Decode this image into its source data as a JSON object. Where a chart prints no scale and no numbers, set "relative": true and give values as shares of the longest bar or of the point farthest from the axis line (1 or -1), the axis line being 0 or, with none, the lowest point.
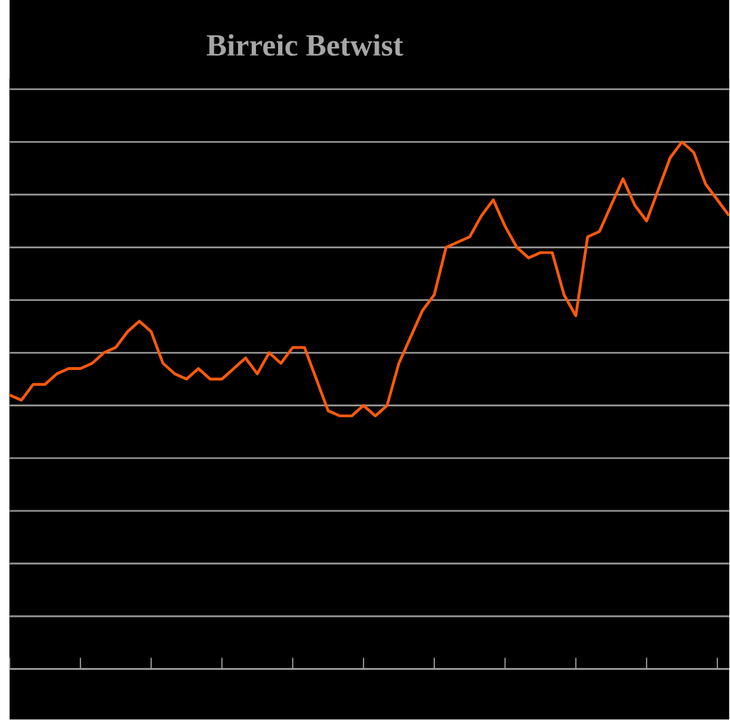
{
  "chart_data": {
    "type": "line",
    "title": "Birreic Betwist",
    "relative": true,
    "grid": "y",
    "tick_labels": false,
    "marker": "none",
    "line_style": "solid",
    "color": "#ff5a0a",
    "categories": [
      null,
      null,
      null,
      null,
      null,
      null,
      null,
      null,
      null,
      null,
      null,
      null,
      null,
      null,
      null,
      null,
      null,
      null,
      null,
      null,
      null,
      null,
      null,
      null,
      null,
      null,
      null,
      null,
      null,
      null,
      null,
      null,
      null,
      null,
      null,
      null,
      null,
      null,
      null,
      null,
      null,
      null,
      null,
      null,
      null,
      null,
      null,
      null,
      null,
      null,
      null,
      null,
      null,
      null,
      null,
      null,
      null,
      null,
      null,
      null,
      null,
      null
    ],
    "values": [
      0.52,
      0.51,
      0.54,
      0.54,
      0.56,
      0.57,
      0.57,
      0.58,
      0.6,
      0.61,
      0.64,
      0.66,
      0.64,
      0.58,
      0.56,
      0.55,
      0.57,
      0.55,
      0.55,
      0.57,
      0.59,
      0.56,
      0.6,
      0.58,
      0.61,
      0.61,
      0.55,
      0.49,
      0.48,
      0.48,
      0.5,
      0.48,
      0.5,
      0.58,
      0.63,
      0.68,
      0.71,
      0.8,
      0.81,
      0.82,
      0.86,
      0.89,
      0.84,
      0.8,
      0.78,
      0.79,
      0.79,
      0.71,
      0.67,
      0.82,
      0.83,
      0.88,
      0.93,
      0.88,
      0.85,
      0.91,
      0.97,
      1.0,
      0.98,
      0.92,
      0.89,
      0.86
    ]
  }
}
